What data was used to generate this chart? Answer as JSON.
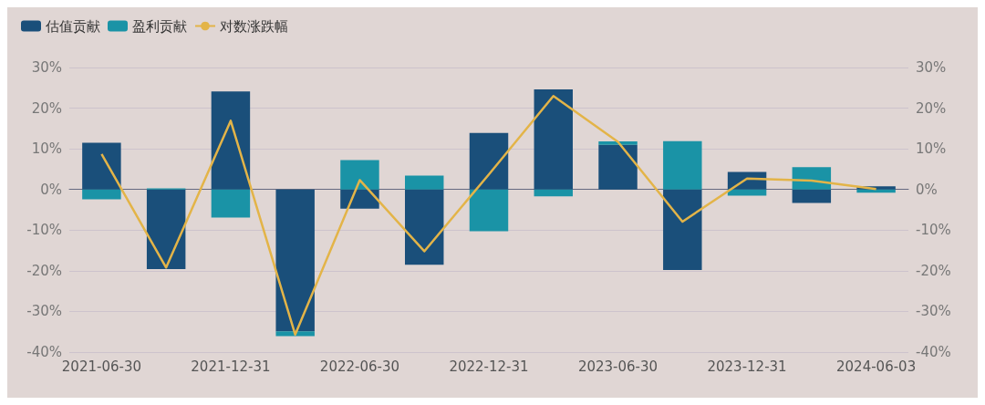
{
  "chart_data": {
    "type": "bar",
    "stacked": true,
    "categories": [
      "2021-06-30",
      null,
      "2021-12-31",
      null,
      "2022-06-30",
      null,
      "2022-12-31",
      null,
      "2023-06-30",
      null,
      "2023-12-31",
      null,
      "2024-06-03"
    ],
    "series": [
      {
        "name": "估值贡献",
        "color": "#1a4f7a",
        "values": [
          11.5,
          -19.6,
          24.1,
          -34.9,
          -4.7,
          -18.5,
          13.9,
          24.6,
          11.0,
          -19.8,
          4.3,
          -3.3,
          0.8
        ]
      },
      {
        "name": "盈利贡献",
        "color": "#1a93a6",
        "values": [
          -2.4,
          0.3,
          -6.9,
          -1.2,
          7.2,
          3.4,
          -10.3,
          -1.7,
          0.8,
          11.9,
          -1.5,
          5.5,
          -0.8
        ]
      },
      {
        "name": "对数涨跌幅",
        "type": "line",
        "color": "#e3b448",
        "values": [
          8.7,
          -19.2,
          16.9,
          -35.7,
          2.3,
          -15.2,
          3.7,
          23.0,
          11.7,
          -7.9,
          2.7,
          2.2,
          0.1
        ]
      }
    ],
    "ylim": [
      -40,
      30
    ],
    "yticks": [
      {
        "value": -40,
        "label": "-40%"
      },
      {
        "value": -30,
        "label": "-30%"
      },
      {
        "value": -20,
        "label": "-20%"
      },
      {
        "value": -10,
        "label": "-10%"
      },
      {
        "value": 0,
        "label": "0%"
      },
      {
        "value": 10,
        "label": "10%"
      },
      {
        "value": 20,
        "label": "20%"
      },
      {
        "value": 30,
        "label": "30%"
      }
    ],
    "y2lim": [
      -40,
      30
    ],
    "y2ticks": [
      {
        "value": -40,
        "label": "-40%"
      },
      {
        "value": -30,
        "label": "-30%"
      },
      {
        "value": -20,
        "label": "-20%"
      },
      {
        "value": -10,
        "label": "-10%"
      },
      {
        "value": 0,
        "label": "0%"
      },
      {
        "value": 10,
        "label": "10%"
      },
      {
        "value": 20,
        "label": "20%"
      },
      {
        "value": 30,
        "label": "30%"
      }
    ],
    "grid": "y",
    "legend": "top left",
    "marker": "none",
    "line_style": "solid"
  }
}
